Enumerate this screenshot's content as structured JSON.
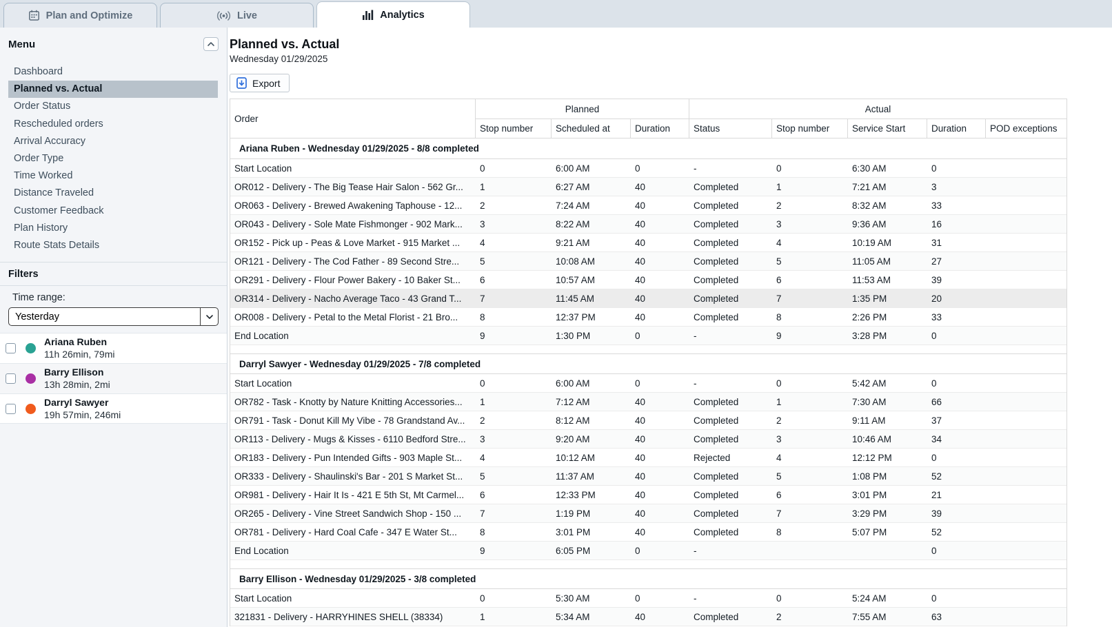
{
  "tabs": [
    {
      "label": "Plan and Optimize",
      "icon": "calendar"
    },
    {
      "label": "Live",
      "icon": "live"
    },
    {
      "label": "Analytics",
      "icon": "bar-chart"
    }
  ],
  "sidebar": {
    "menu_title": "Menu",
    "selected": "Planned vs. Actual",
    "items": [
      "Dashboard",
      "Planned vs. Actual",
      "Order Status",
      "Rescheduled orders",
      "Arrival Accuracy",
      "Order Type",
      "Time Worked",
      "Distance Traveled",
      "Customer Feedback",
      "Plan History",
      "Route Stats Details"
    ]
  },
  "filters": {
    "title": "Filters",
    "time_range_label": "Time range:",
    "time_range_value": "Yesterday",
    "drivers": [
      {
        "name": "Ariana Ruben",
        "stats": "11h 26min, 79mi",
        "color": "#2aa293"
      },
      {
        "name": "Barry Ellison",
        "stats": "13h 28min, 2mi",
        "color": "#a92fa4"
      },
      {
        "name": "Darryl Sawyer",
        "stats": "19h 57min, 246mi",
        "color": "#f05b1d"
      }
    ]
  },
  "main": {
    "title": "Planned vs. Actual",
    "date": "Wednesday 01/29/2025",
    "export_label": "Export"
  },
  "table": {
    "order_header": "Order",
    "planned_header": "Planned",
    "actual_header": "Actual",
    "planned_columns": [
      "Stop number",
      "Scheduled at",
      "Duration"
    ],
    "actual_columns": [
      "Status",
      "Stop number",
      "Service Start",
      "Duration",
      "POD exceptions"
    ],
    "sections": [
      {
        "header": "Ariana Ruben - Wednesday 01/29/2025 - 8/8 completed",
        "highlight_row": 7,
        "rows": [
          [
            "Start Location",
            "0",
            "6:00 AM",
            "0",
            "-",
            "0",
            "6:30 AM",
            "0",
            ""
          ],
          [
            "OR012 - Delivery - The Big Tease Hair Salon - 562 Gr...",
            "1",
            "6:27 AM",
            "40",
            "Completed",
            "1",
            "7:21 AM",
            "3",
            ""
          ],
          [
            "OR063 - Delivery - Brewed Awakening Taphouse - 12...",
            "2",
            "7:24 AM",
            "40",
            "Completed",
            "2",
            "8:32 AM",
            "33",
            ""
          ],
          [
            "OR043 - Delivery - Sole Mate Fishmonger - 902 Mark...",
            "3",
            "8:22 AM",
            "40",
            "Completed",
            "3",
            "9:36 AM",
            "16",
            ""
          ],
          [
            "OR152 - Pick up - Peas & Love Market - 915 Market ...",
            "4",
            "9:21 AM",
            "40",
            "Completed",
            "4",
            "10:19 AM",
            "31",
            ""
          ],
          [
            "OR121 - Delivery - The Cod Father - 89 Second Stre...",
            "5",
            "10:08 AM",
            "40",
            "Completed",
            "5",
            "11:05 AM",
            "27",
            ""
          ],
          [
            "OR291 - Delivery - Flour Power Bakery - 10 Baker St...",
            "6",
            "10:57 AM",
            "40",
            "Completed",
            "6",
            "11:53 AM",
            "39",
            ""
          ],
          [
            "OR314 - Delivery - Nacho Average Taco - 43 Grand T...",
            "7",
            "11:45 AM",
            "40",
            "Completed",
            "7",
            "1:35 PM",
            "20",
            ""
          ],
          [
            "OR008 - Delivery - Petal to the Metal Florist - 21 Bro...",
            "8",
            "12:37 PM",
            "40",
            "Completed",
            "8",
            "2:26 PM",
            "33",
            ""
          ],
          [
            "End Location",
            "9",
            "1:30 PM",
            "0",
            "-",
            "9",
            "3:28 PM",
            "0",
            ""
          ]
        ]
      },
      {
        "header": "Darryl Sawyer - Wednesday 01/29/2025 - 7/8 completed",
        "highlight_row": -1,
        "rows": [
          [
            "Start Location",
            "0",
            "6:00 AM",
            "0",
            "-",
            "0",
            "5:42 AM",
            "0",
            ""
          ],
          [
            "OR782 - Task - Knotty by Nature Knitting Accessories...",
            "1",
            "7:12 AM",
            "40",
            "Completed",
            "1",
            "7:30 AM",
            "66",
            ""
          ],
          [
            "OR791 - Task - Donut Kill My Vibe - 78 Grandstand Av...",
            "2",
            "8:12 AM",
            "40",
            "Completed",
            "2",
            "9:11 AM",
            "37",
            ""
          ],
          [
            "OR113 - Delivery - Mugs & Kisses - 6110 Bedford Stre...",
            "3",
            "9:20 AM",
            "40",
            "Completed",
            "3",
            "10:46 AM",
            "34",
            ""
          ],
          [
            "OR183 - Delivery - Pun Intended Gifts - 903 Maple St...",
            "4",
            "10:12 AM",
            "40",
            "Rejected",
            "4",
            "12:12 PM",
            "0",
            ""
          ],
          [
            "OR333 - Delivery - Shaulinski's Bar - 201 S Market St...",
            "5",
            "11:37 AM",
            "40",
            "Completed",
            "5",
            "1:08 PM",
            "52",
            ""
          ],
          [
            "OR981 - Delivery - Hair It Is - 421 E 5th St, Mt Carmel...",
            "6",
            "12:33 PM",
            "40",
            "Completed",
            "6",
            "3:01 PM",
            "21",
            ""
          ],
          [
            "OR265 - Delivery - Vine Street Sandwich Shop - 150 ...",
            "7",
            "1:19 PM",
            "40",
            "Completed",
            "7",
            "3:29 PM",
            "39",
            ""
          ],
          [
            "OR781 - Delivery - Hard Coal Cafe - 347 E Water St...",
            "8",
            "3:01 PM",
            "40",
            "Completed",
            "8",
            "5:07 PM",
            "52",
            ""
          ],
          [
            "End Location",
            "9",
            "6:05 PM",
            "0",
            "-",
            "",
            "",
            "0",
            ""
          ]
        ]
      },
      {
        "header": "Barry Ellison - Wednesday 01/29/2025 - 3/8 completed",
        "highlight_row": -1,
        "rows": [
          [
            "Start Location",
            "0",
            "5:30 AM",
            "0",
            "-",
            "0",
            "5:24 AM",
            "0",
            ""
          ],
          [
            "321831 - Delivery - HARRYHINES SHELL (38334)",
            "1",
            "5:34 AM",
            "40",
            "Completed",
            "2",
            "7:55 AM",
            "63",
            ""
          ]
        ]
      }
    ]
  }
}
